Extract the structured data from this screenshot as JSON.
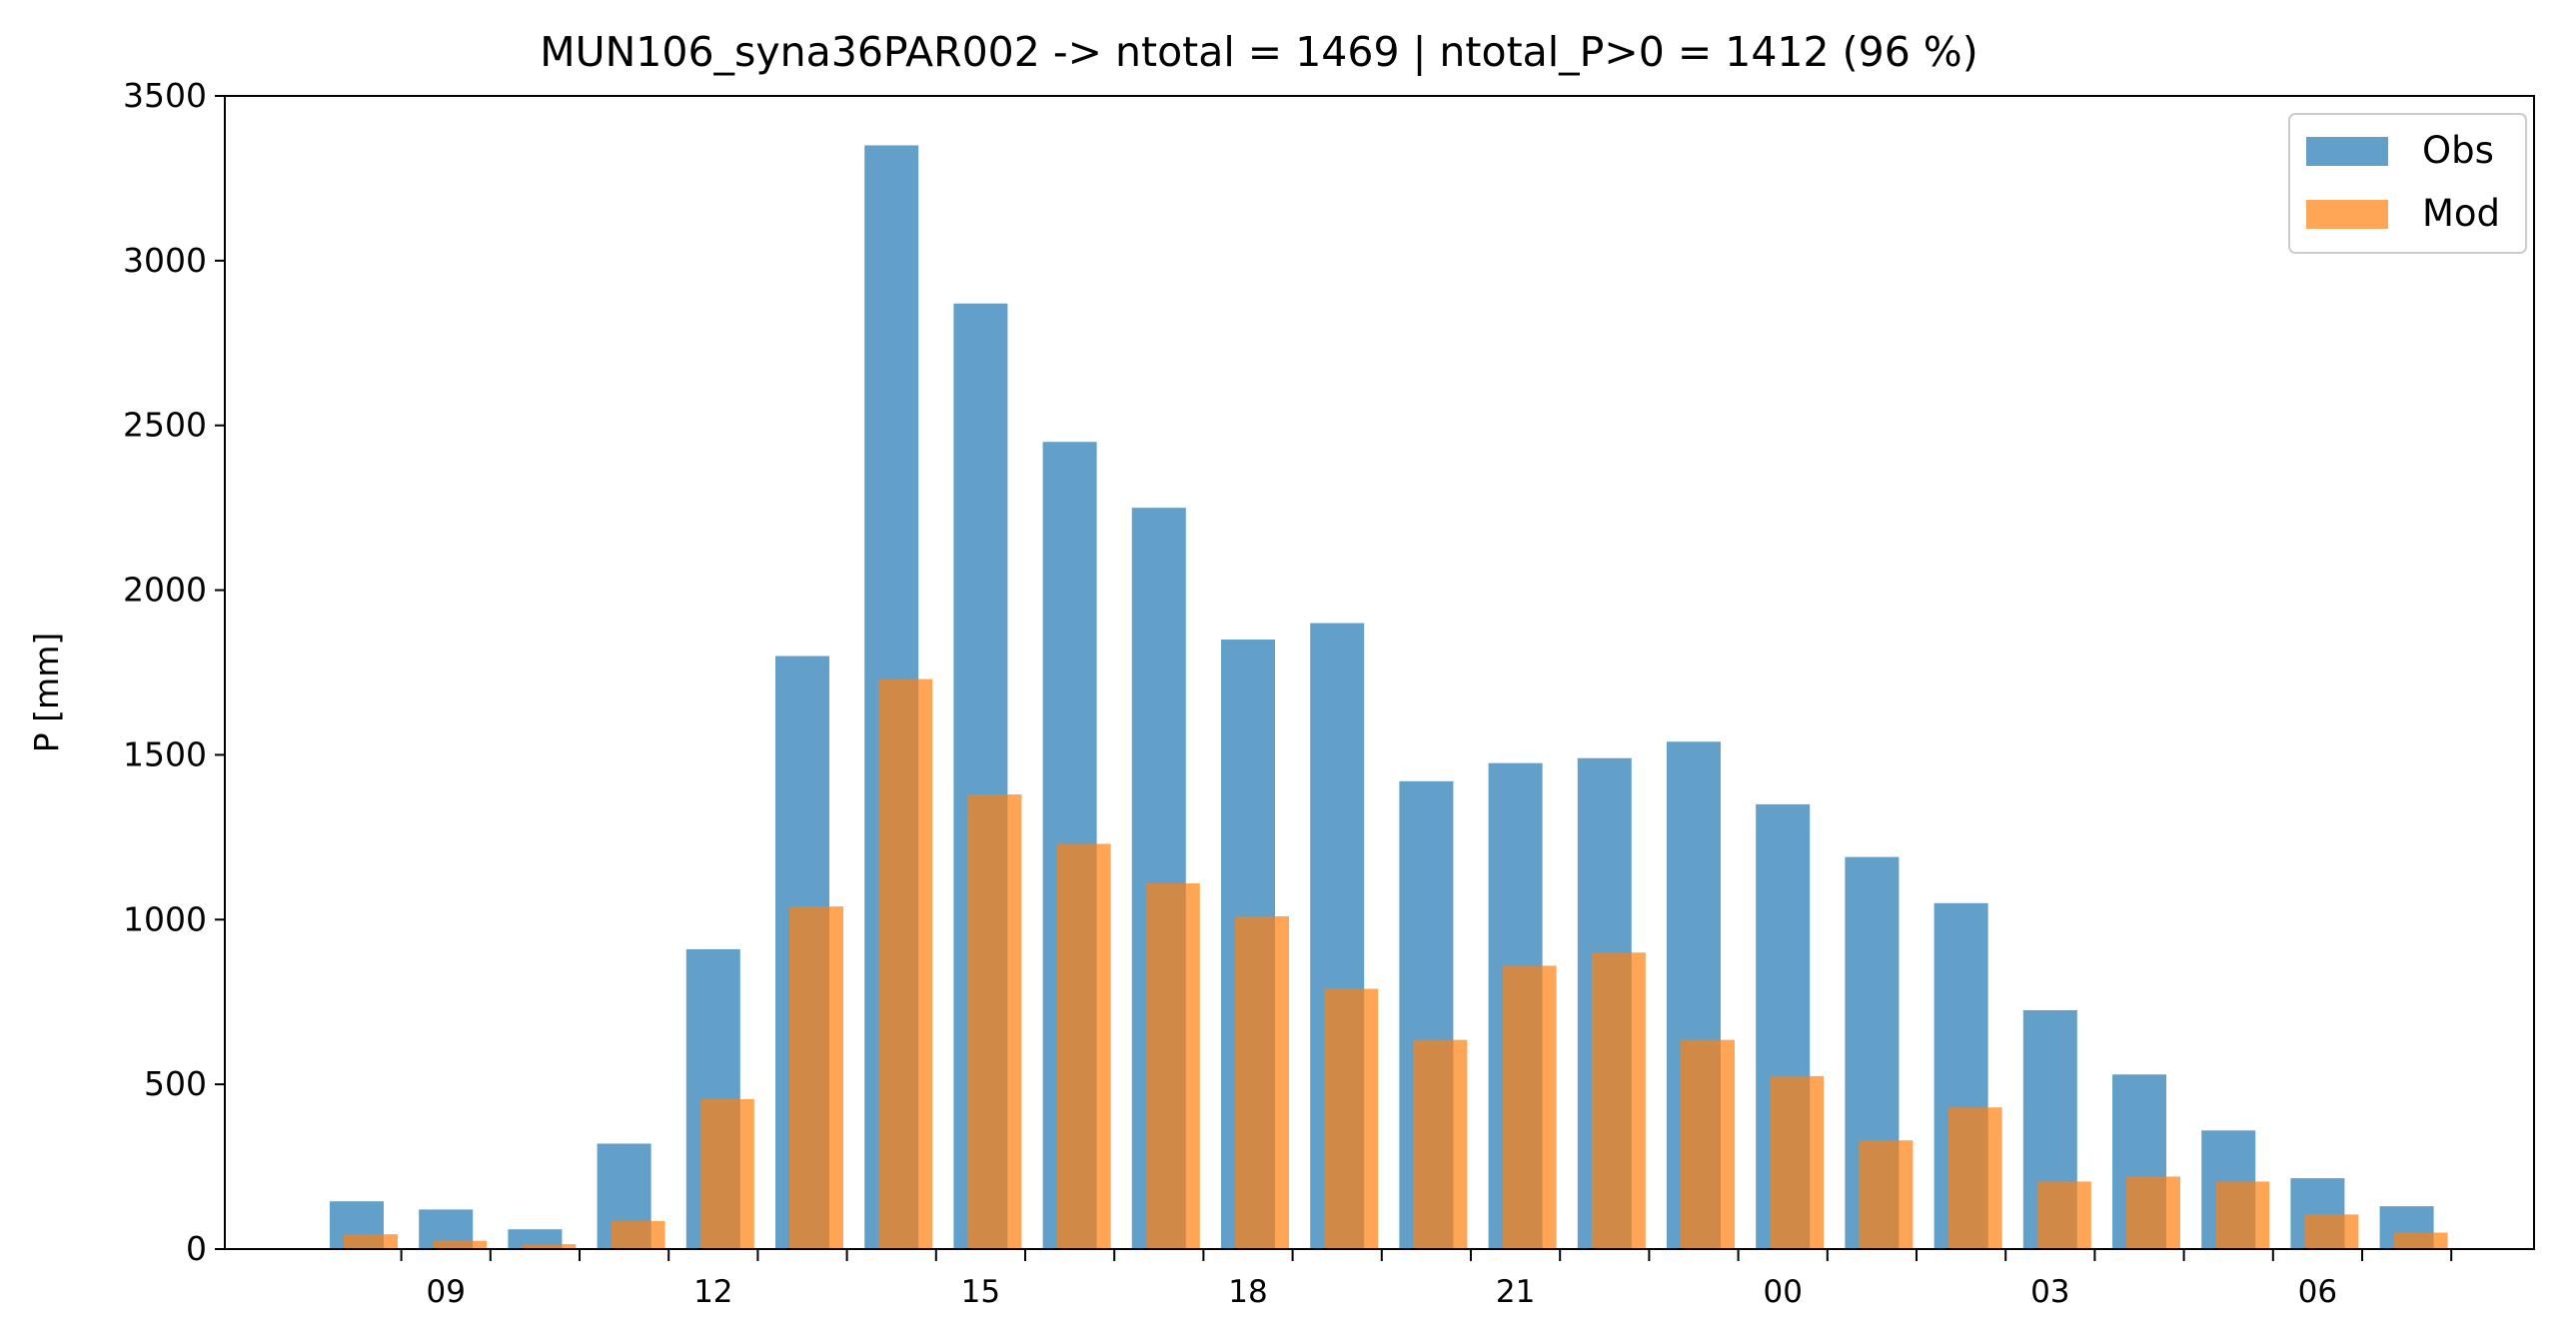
{
  "chart_data": {
    "type": "bar",
    "title": "MUN106_syna36PAR002 -> ntotal = 1469 | ntotal_P>0 = 1412 (96 %)",
    "xlabel": "",
    "ylabel": "P [mm]",
    "ylim": [
      0,
      3500
    ],
    "yticks": [
      "0",
      "500",
      "1000",
      "1500",
      "2000",
      "2500",
      "3000",
      "3500"
    ],
    "x_hours": [
      8,
      9,
      10,
      11,
      12,
      13,
      14,
      15,
      16,
      17,
      18,
      19,
      20,
      21,
      22,
      23,
      0,
      1,
      2,
      3,
      4,
      5,
      6,
      7
    ],
    "xtick_labels": [
      "09",
      "12",
      "15",
      "18",
      "21",
      "00",
      "03",
      "06"
    ],
    "series": [
      {
        "name": "Obs",
        "color": "#1f77b4",
        "values": [
          145,
          120,
          60,
          320,
          910,
          1800,
          3350,
          2870,
          2450,
          2250,
          1850,
          1900,
          1420,
          1475,
          1490,
          1540,
          1350,
          1190,
          1050,
          725,
          530,
          360,
          215,
          130
        ]
      },
      {
        "name": "Mod",
        "color": "#ff7f0e",
        "values": [
          45,
          25,
          15,
          85,
          455,
          1040,
          1730,
          1380,
          1230,
          1110,
          1010,
          790,
          635,
          860,
          900,
          635,
          525,
          330,
          430,
          205,
          220,
          205,
          105,
          50
        ]
      }
    ],
    "grid": false,
    "legend": "top-right"
  }
}
